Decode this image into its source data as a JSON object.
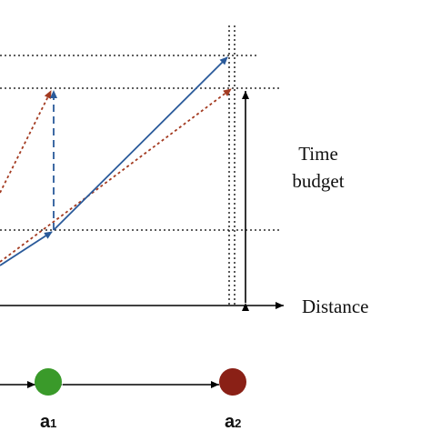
{
  "labels": {
    "x_axis": "Distance",
    "budget_line1": "Time",
    "budget_line2": "budget",
    "node_a1_letter": "a",
    "node_a1_sub": "1",
    "node_a2_letter": "a",
    "node_a2_sub": "2"
  },
  "colors": {
    "solid_route": "#2a5a9a",
    "dashed_route": "#a33a20",
    "node_a1": "#3a9a2a",
    "node_a2": "#8a2016",
    "axis": "#000000"
  }
}
